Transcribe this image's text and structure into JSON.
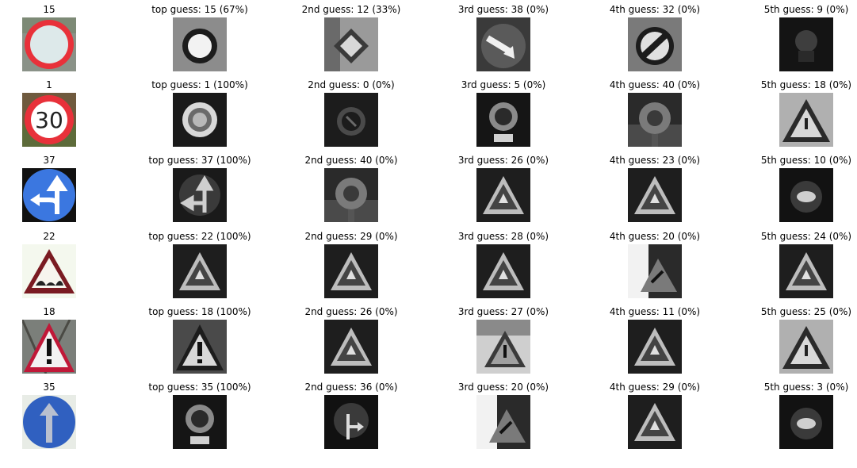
{
  "rows": [
    {
      "sign": "no-vehicles",
      "titles": [
        "15",
        "top guess: 15 (67%)",
        "2nd guess: 12 (33%)",
        "3rd guess: 38 (0%)",
        "4th guess: 32 (0%)",
        "5th guess: 9 (0%)"
      ],
      "guess_signs": [
        "no-vehicles",
        "priority-road",
        "keep-right",
        "end-of-limits",
        "dark-blob"
      ]
    },
    {
      "sign": "speed-limit",
      "sign_text": "30",
      "titles": [
        "1",
        "top guess: 1 (100%)",
        "2nd guess: 0 (0%)",
        "3rd guess: 5 (0%)",
        "4th guess: 40 (0%)",
        "5th guess: 18 (0%)"
      ],
      "guess_signs": [
        "speed-circle",
        "speed-circle-dark",
        "round-with-plate",
        "roundabout",
        "triangle-light"
      ]
    },
    {
      "sign": "go-straight-or-left",
      "titles": [
        "37",
        "top guess: 37 (100%)",
        "2nd guess: 40 (0%)",
        "3rd guess: 26 (0%)",
        "4th guess: 23 (0%)",
        "5th guess: 10 (0%)"
      ],
      "guess_signs": [
        "straight-left-gray",
        "roundabout",
        "triangle-dark",
        "triangle-dark",
        "round-blob"
      ]
    },
    {
      "sign": "bumpy-road",
      "titles": [
        "22",
        "top guess: 22 (100%)",
        "2nd guess: 29 (0%)",
        "3rd guess: 28 (0%)",
        "4th guess: 20 (0%)",
        "5th guess: 24 (0%)"
      ],
      "guess_signs": [
        "triangle-dark",
        "triangle-dark",
        "triangle-dark",
        "triangle-light-left",
        "triangle-dark"
      ]
    },
    {
      "sign": "general-caution",
      "titles": [
        "18",
        "top guess: 18 (100%)",
        "2nd guess: 26 (0%)",
        "3rd guess: 27 (0%)",
        "4th guess: 11 (0%)",
        "5th guess: 25 (0%)"
      ],
      "guess_signs": [
        "triangle-exclaim",
        "triangle-dark",
        "triangle-gray",
        "triangle-dark",
        "triangle-light"
      ]
    },
    {
      "sign": "ahead-only",
      "titles": [
        "35",
        "top guess: 35 (100%)",
        "2nd guess: 36 (0%)",
        "3rd guess: 20 (0%)",
        "4th guess: 29 (0%)",
        "5th guess: 3 (0%)"
      ],
      "guess_signs": [
        "round-with-plate",
        "straight-right",
        "triangle-light-left",
        "triangle-dark",
        "round-blob"
      ]
    }
  ],
  "colors": {
    "sign_red": "#e8313a",
    "sign_blue": "#3b77e0",
    "sign_blue_dark": "#3060c0"
  }
}
